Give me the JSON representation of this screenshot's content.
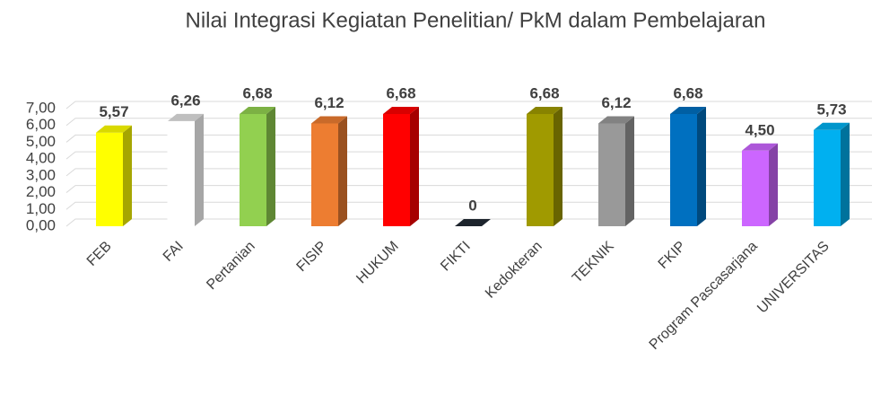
{
  "chart_data": {
    "type": "bar",
    "title": "Nilai Integrasi Kegiatan Penelitian/ PkM dalam Pembelajaran",
    "categories": [
      "FEB",
      "FAI",
      "Pertanian",
      "FISIP",
      "HUKUM",
      "FIKTI",
      "Kedokteran",
      "TEKNIK",
      "FKIP",
      "Program Pascasarjana",
      "UNIVERSITAS"
    ],
    "values": [
      5.57,
      6.26,
      6.68,
      6.12,
      6.68,
      0,
      6.68,
      6.12,
      6.68,
      4.5,
      5.73
    ],
    "value_labels": [
      "5,57",
      "6,26",
      "6,68",
      "6,12",
      "6,68",
      "0",
      "6,68",
      "6,12",
      "6,68",
      "4,50",
      "5,73"
    ],
    "colors": [
      "#ffff00",
      "#ffffff",
      "#92d050",
      "#ed7d31",
      "#ff0000",
      "#222a35",
      "#a09a00",
      "#999999",
      "#0070c0",
      "#cc66ff",
      "#00b0f0"
    ],
    "ylim": [
      0,
      7
    ],
    "yticks": [
      {
        "value": 0,
        "label": "0,00"
      },
      {
        "value": 1,
        "label": "1,00"
      },
      {
        "value": 2,
        "label": "2,00"
      },
      {
        "value": 3,
        "label": "3,00"
      },
      {
        "value": 4,
        "label": "4,00"
      },
      {
        "value": 5,
        "label": "5,00"
      },
      {
        "value": 6,
        "label": "6,00"
      },
      {
        "value": 7,
        "label": "7,00"
      }
    ],
    "grid": true
  }
}
